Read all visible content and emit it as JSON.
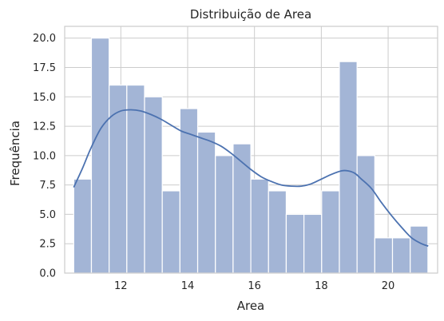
{
  "chart_data": {
    "type": "bar",
    "title": "Distribuição de Area",
    "xlabel": "Area",
    "ylabel": "Frequência",
    "xlim": [
      10.32,
      21.48
    ],
    "ylim": [
      0,
      21
    ],
    "grid": true,
    "bins": {
      "start": 10.59,
      "width": 0.53,
      "counts": [
        8,
        20,
        16,
        16,
        15,
        7,
        14,
        12,
        10,
        11,
        8,
        7,
        5,
        5,
        7,
        18,
        10,
        3,
        3,
        4
      ]
    },
    "kde": {
      "x": [
        10.59,
        10.85,
        11.1,
        11.4,
        11.7,
        12.0,
        12.3,
        12.6,
        12.9,
        13.2,
        13.5,
        13.8,
        14.1,
        14.4,
        14.7,
        15.0,
        15.3,
        15.6,
        15.9,
        16.2,
        16.5,
        16.8,
        17.1,
        17.4,
        17.7,
        18.0,
        18.3,
        18.6,
        18.8,
        19.0,
        19.2,
        19.5,
        19.8,
        20.1,
        20.4,
        20.7,
        21.0,
        21.2
      ],
      "y": [
        7.3,
        8.9,
        10.6,
        12.3,
        13.3,
        13.8,
        13.9,
        13.8,
        13.5,
        13.1,
        12.6,
        12.1,
        11.8,
        11.5,
        11.2,
        10.8,
        10.2,
        9.5,
        8.8,
        8.2,
        7.8,
        7.5,
        7.4,
        7.4,
        7.6,
        8.0,
        8.4,
        8.7,
        8.7,
        8.5,
        8.0,
        7.2,
        6.0,
        4.9,
        3.9,
        3.0,
        2.5,
        2.3
      ]
    },
    "xticks": [
      12,
      14,
      16,
      18,
      20
    ],
    "xtick_labels": [
      "12",
      "14",
      "16",
      "18",
      "20"
    ],
    "yticks": [
      0,
      2.5,
      5,
      7.5,
      10,
      12.5,
      15,
      17.5,
      20
    ],
    "ytick_labels": [
      "0.0",
      "2.5",
      "5.0",
      "7.5",
      "10.0",
      "12.5",
      "15.0",
      "17.5",
      "20.0"
    ],
    "colors": {
      "bar": "#a3b5d6",
      "bar_edge": "#ffffff",
      "kde": "#4c72b0",
      "grid": "#cccccc",
      "text": "#262626",
      "spine": "#cccccc"
    }
  }
}
